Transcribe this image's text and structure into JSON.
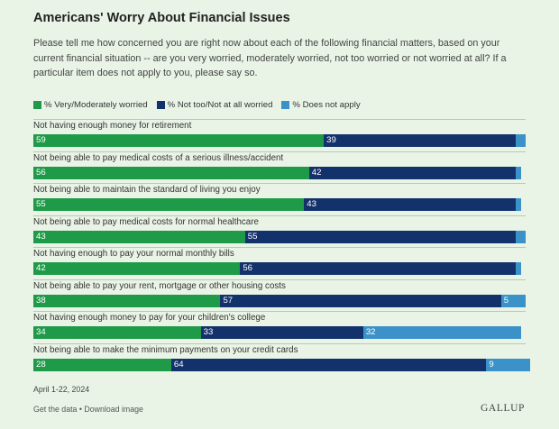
{
  "chart_data": {
    "type": "bar",
    "orientation": "horizontal",
    "stacked": true,
    "title": "Americans' Worry About Financial Issues",
    "subtitle": "Please tell me how concerned you are right now about each of the following financial matters, based on your current financial situation -- are you very worried, moderately worried, not too worried or not worried at all? If a particular item does not apply to you, please say so.",
    "categories": [
      "Not having enough money for retirement",
      "Not being able to pay medical costs of a serious illness/accident",
      "Not being able to maintain the standard of living you enjoy",
      "Not being able to pay medical costs for normal healthcare",
      "Not having enough to pay your normal monthly bills",
      "Not being able to pay your rent, mortgage or other housing costs",
      "Not having enough money to pay for your children's college",
      "Not being able to make the minimum payments on your credit cards"
    ],
    "series": [
      {
        "name": "% Very/Moderately worried",
        "color": "#1f9a48",
        "values": [
          59,
          56,
          55,
          43,
          42,
          38,
          34,
          28
        ]
      },
      {
        "name": "% Not too/Not at all worried",
        "color": "#13316b",
        "values": [
          39,
          42,
          43,
          55,
          56,
          57,
          33,
          64
        ]
      },
      {
        "name": "% Does not apply",
        "color": "#3a92c9",
        "values": [
          2,
          1,
          1,
          2,
          1,
          5,
          32,
          9
        ]
      }
    ],
    "value_labels_hidden_below": 5,
    "xlim": [
      0,
      100
    ],
    "legend_position": "top",
    "grid": false
  },
  "date_text": "April 1-22, 2024",
  "footer_text": "Get the data • Download image",
  "brand_text": "GALLUP"
}
